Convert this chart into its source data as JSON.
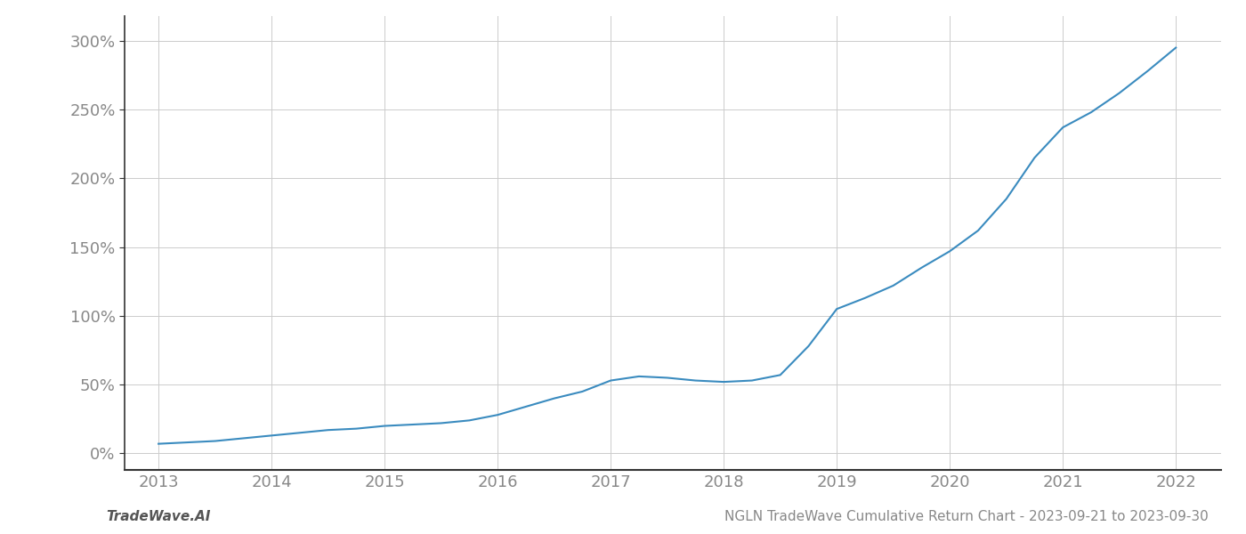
{
  "x_values": [
    2013.0,
    2013.25,
    2013.5,
    2013.75,
    2014.0,
    2014.25,
    2014.5,
    2014.75,
    2015.0,
    2015.25,
    2015.5,
    2015.75,
    2016.0,
    2016.25,
    2016.5,
    2016.75,
    2017.0,
    2017.25,
    2017.5,
    2017.75,
    2018.0,
    2018.25,
    2018.5,
    2018.75,
    2019.0,
    2019.25,
    2019.5,
    2019.75,
    2020.0,
    2020.25,
    2020.5,
    2020.75,
    2021.0,
    2021.25,
    2021.5,
    2021.75,
    2022.0
  ],
  "y_values": [
    7,
    8,
    9,
    11,
    13,
    15,
    17,
    18,
    20,
    21,
    22,
    24,
    28,
    34,
    40,
    45,
    53,
    56,
    55,
    53,
    52,
    53,
    57,
    78,
    105,
    113,
    122,
    135,
    147,
    162,
    185,
    215,
    237,
    248,
    262,
    278,
    295
  ],
  "line_color": "#3a8bbf",
  "line_width": 1.5,
  "background_color": "#ffffff",
  "grid_color": "#cccccc",
  "footer_left": "TradeWave.AI",
  "footer_right": "NGLN TradeWave Cumulative Return Chart - 2023-09-21 to 2023-09-30",
  "xlim": [
    2012.7,
    2022.4
  ],
  "ylim": [
    -12,
    318
  ],
  "yticks": [
    0,
    50,
    100,
    150,
    200,
    250,
    300
  ],
  "xticks": [
    2013,
    2014,
    2015,
    2016,
    2017,
    2018,
    2019,
    2020,
    2021,
    2022
  ],
  "tick_label_color": "#888888",
  "tick_fontsize": 13,
  "footer_fontsize": 11,
  "left_spine_color": "#333333",
  "bottom_spine_color": "#333333"
}
